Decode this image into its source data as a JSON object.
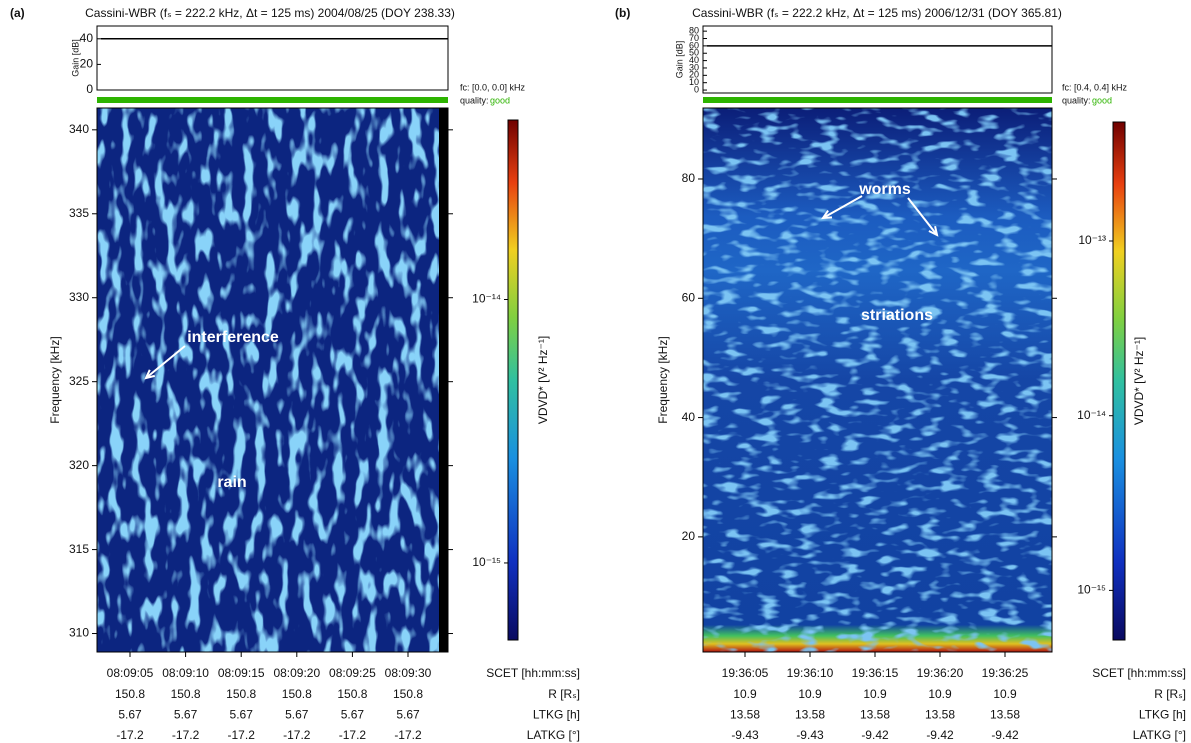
{
  "chart_data": [
    {
      "type": "spectrogram",
      "panel_label": "(a)",
      "title": "Cassini-WBR (fₛ = 222.2 kHz, Δt = 125 ms)  2004/08/25 (DOY 238.33)",
      "gain": {
        "ylabel": "Gain [dB]",
        "ylim": [
          0,
          50
        ],
        "yticks": [
          0,
          20,
          40
        ],
        "values": [
          40,
          40,
          40,
          40,
          40,
          40
        ]
      },
      "fc_label": "fc: [0.0, 0.0] kHz",
      "quality_label": "quality:",
      "quality": "good",
      "ylabel": "Frequency [kHz]",
      "ylim": [
        308.9,
        341.3
      ],
      "yticks": [
        310,
        315,
        320,
        325,
        330,
        335,
        340
      ],
      "xlabel": "SCET [hh:mm:ss]",
      "categories": [
        "08:09:05",
        "08:09:10",
        "08:09:15",
        "08:09:20",
        "08:09:25",
        "08:09:30"
      ],
      "rows": [
        {
          "label": "R [Rₛ]",
          "values": [
            150.8,
            150.8,
            150.8,
            150.8,
            150.8,
            150.8
          ]
        },
        {
          "label": "LTKG [h]",
          "values": [
            5.67,
            5.67,
            5.67,
            5.67,
            5.67,
            5.67
          ]
        },
        {
          "label": "LATKG [°]",
          "values": [
            -17.2,
            -17.2,
            -17.2,
            -17.2,
            -17.2,
            -17.2
          ]
        }
      ],
      "colorbar": {
        "label": "VDVD* [V² Hz⁻¹]",
        "scale": "log",
        "lim": [
          5.1e-16,
          4.8e-14
        ],
        "ticks": [
          {
            "value": 1e-15,
            "label": "10⁻¹⁵"
          },
          {
            "value": 1e-14,
            "label": "10⁻¹⁴"
          }
        ]
      },
      "annotations": [
        "interference",
        "rain"
      ]
    },
    {
      "type": "spectrogram",
      "panel_label": "(b)",
      "title": "Cassini-WBR (fₛ = 222.2 kHz, Δt = 125 ms)  2006/12/31 (DOY 365.81)",
      "gain": {
        "ylabel": "Gain [dB]",
        "ylim": [
          -4,
          87
        ],
        "yticks": [
          0,
          10,
          20,
          30,
          40,
          50,
          60,
          70,
          80
        ],
        "values": [
          60,
          60,
          60,
          60,
          60
        ]
      },
      "fc_label": "fc: [0.4, 0.4] kHz",
      "quality_label": "quality:",
      "quality": "good",
      "ylabel": "Frequency [kHz]",
      "ylim": [
        0.7,
        91.9
      ],
      "yticks": [
        20,
        40,
        60,
        80
      ],
      "xlabel": "SCET [hh:mm:ss]",
      "categories": [
        "19:36:05",
        "19:36:10",
        "19:36:15",
        "19:36:20",
        "19:36:25"
      ],
      "rows": [
        {
          "label": "R [Rₛ]",
          "values": [
            10.9,
            10.9,
            10.9,
            10.9,
            10.9
          ]
        },
        {
          "label": "LTKG [h]",
          "values": [
            13.58,
            13.58,
            13.58,
            13.58,
            13.58
          ]
        },
        {
          "label": "LATKG [°]",
          "values": [
            -9.43,
            -9.43,
            -9.42,
            -9.42,
            -9.42
          ]
        }
      ],
      "colorbar": {
        "label": "VDVD* [V² Hz⁻¹]",
        "scale": "log",
        "lim": [
          5.2e-16,
          4.8e-13
        ],
        "ticks": [
          {
            "value": 1e-15,
            "label": "10⁻¹⁵"
          },
          {
            "value": 1e-14,
            "label": "10⁻¹⁴"
          },
          {
            "value": 1e-13,
            "label": "10⁻¹³"
          }
        ]
      },
      "annotations": [
        "worms",
        "striations"
      ]
    }
  ]
}
